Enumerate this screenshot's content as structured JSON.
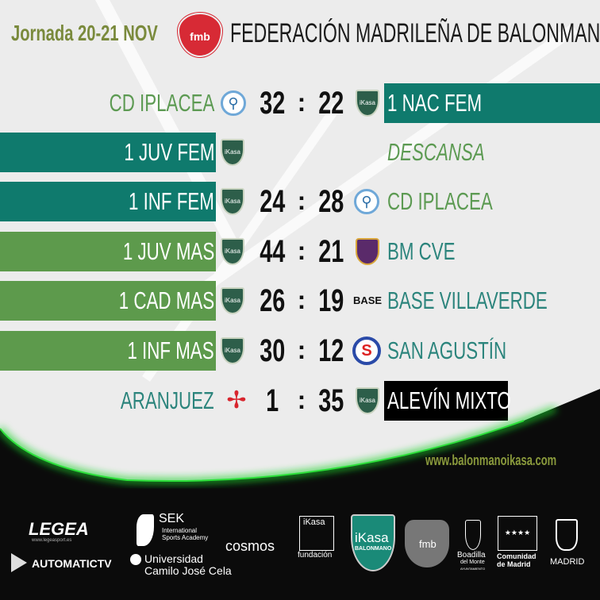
{
  "header": {
    "jornada": "Jornada 20-21 NOV",
    "federation_logo": "fmb",
    "federation": "FEDERACIÓN MADRILEÑA DE BALONMANO"
  },
  "colors": {
    "teal_bar": "#0f7a6d",
    "green_bar": "#5d9a4c",
    "black_bar": "#000000",
    "jornada_text": "#7a8a3c"
  },
  "matches": [
    {
      "home": "CD IPLACEA",
      "home_logo": "iplacea",
      "home_score": "32",
      "away_score": "22",
      "away": "1 NAC FEM",
      "away_logo": "ikasa"
    },
    {
      "home": "1 JUV FEM",
      "home_logo": "ikasa",
      "away": "DESCANSA"
    },
    {
      "home": "1 INF FEM",
      "home_logo": "ikasa",
      "home_score": "24",
      "away_score": "28",
      "away": "CD IPLACEA",
      "away_logo": "iplacea"
    },
    {
      "home": "1 JUV MAS",
      "home_logo": "ikasa",
      "home_score": "44",
      "away_score": "21",
      "away": "BM CVE",
      "away_logo": "cve"
    },
    {
      "home": "1 CAD MAS",
      "home_logo": "ikasa",
      "home_score": "26",
      "away_score": "19",
      "away": "BASE VILLAVERDE",
      "away_logo": "base"
    },
    {
      "home": "1 INF MAS",
      "home_logo": "ikasa",
      "home_score": "30",
      "away_score": "12",
      "away": "SAN AGUSTÍN",
      "away_logo": "san-agustin"
    },
    {
      "home": "ARANJUEZ",
      "home_logo": "aranjuez",
      "home_score": "1",
      "away_score": "35",
      "away": "ALEVÍN MIXTO",
      "away_logo": "ikasa"
    }
  ],
  "separator": ":",
  "ikasa_logo_text": "iKasa",
  "base_logo_text": "BASE",
  "website": "www.balonmanoikasa.com",
  "sponsors": {
    "legea": "LEGEA",
    "legea_url": "www.legeasport.es",
    "sek": "SEK",
    "sek_sub": "International Sports Academy",
    "automatic": "AUTOMATICTV",
    "ucjc1": "Universidad",
    "ucjc2": "Camilo José Cela",
    "cosmos": "cosmos",
    "fund_top": "iKasa",
    "fund_bottom": "fundación",
    "ikasa_top": "iKasa",
    "ikasa_bottom": "BALONMANO",
    "fmb": "fmb",
    "boadilla1": "Boadilla",
    "boadilla2": "del Monte",
    "boadilla3": "AYUNTAMIENTO",
    "cm1": "Comunidad",
    "cm2": "de Madrid",
    "madrid": "MADRID"
  }
}
